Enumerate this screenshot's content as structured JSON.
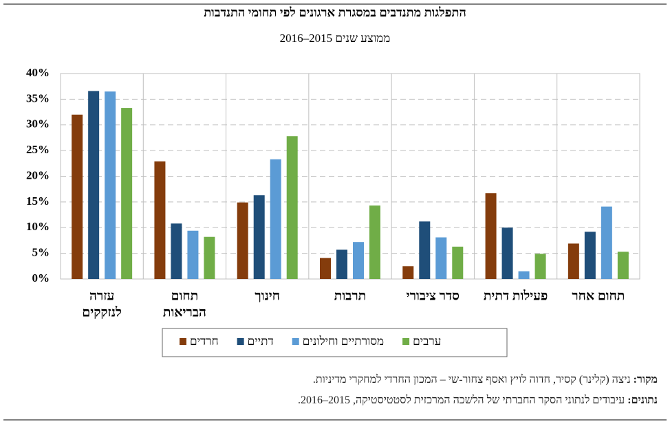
{
  "chart_data": {
    "type": "bar",
    "title": "התפלגות מתנדבים במסגרת ארגונים לפי תחומי התנדבות",
    "subtitle": "ממוצע שנים 2015–2016",
    "categories": [
      [
        "עזרה",
        "לנזקקים"
      ],
      [
        "תחום",
        "הבריאות"
      ],
      [
        "חינוך"
      ],
      [
        "תרבות"
      ],
      [
        "סדר ציבורי"
      ],
      [
        "פעילות דתית"
      ],
      [
        "תחום אחר"
      ]
    ],
    "series": [
      {
        "name": "חרדים",
        "color": "#843c0c",
        "values": [
          32,
          22.9,
          14.9,
          4.1,
          2.5,
          16.7,
          6.9
        ]
      },
      {
        "name": "דתיים",
        "color": "#1f4e79",
        "values": [
          36.6,
          10.8,
          16.3,
          5.7,
          11.2,
          10.0,
          9.2
        ]
      },
      {
        "name": "מסורתיים וחילונים",
        "color": "#5b9bd5",
        "values": [
          36.5,
          9.4,
          23.3,
          7.2,
          8.1,
          1.5,
          14.1
        ]
      },
      {
        "name": "ערבים",
        "color": "#70ad47",
        "values": [
          33.3,
          8.2,
          27.8,
          14.3,
          6.3,
          4.9,
          5.3
        ]
      }
    ],
    "ylim": [
      0,
      40
    ],
    "yticks": [
      {
        "value": 0,
        "label": "0%"
      },
      {
        "value": 5,
        "label": "5%"
      },
      {
        "value": 10,
        "label": "10%"
      },
      {
        "value": 15,
        "label": "15%"
      },
      {
        "value": 20,
        "label": "20%"
      },
      {
        "value": 25,
        "label": "25%"
      },
      {
        "value": 30,
        "label": "30%"
      },
      {
        "value": 35,
        "label": "35%"
      },
      {
        "value": 40,
        "label": "40%"
      }
    ],
    "grid": true,
    "legend": "bottom",
    "notes": [
      {
        "label": "מקור:",
        "text": "ניצה (קלינר) קסיר, חדוה לויץ ואסף צחור-שי – המכון החרדי למחקרי מדיניות."
      },
      {
        "label": "נתונים:",
        "text": "עיבודים לנתוני הסקר החברתי של הלשכה המרכזית לסטטיסטיקה, 2015–2016."
      }
    ]
  }
}
